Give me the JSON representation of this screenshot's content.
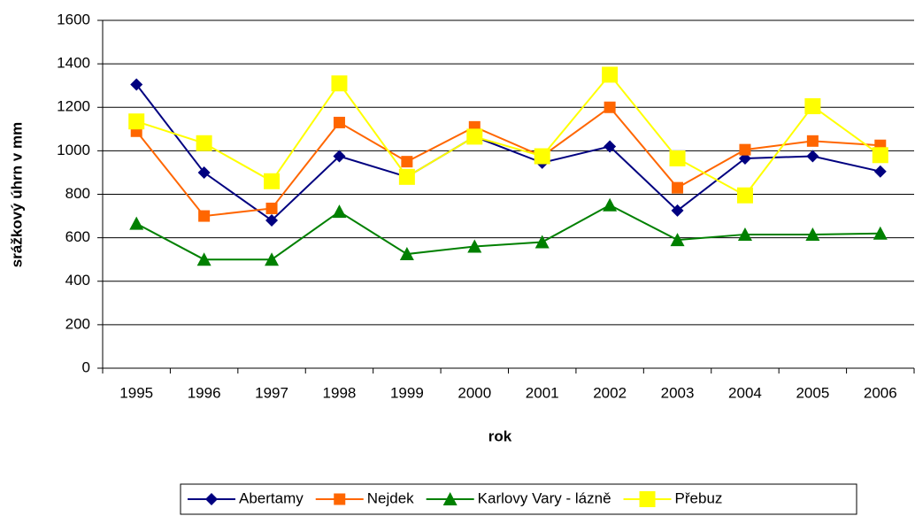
{
  "chart_data": {
    "type": "line",
    "x_label": "rok",
    "y_label": "srážkový úhrn v mm",
    "categories": [
      "1995",
      "1996",
      "1997",
      "1998",
      "1999",
      "2000",
      "2001",
      "2002",
      "2003",
      "2004",
      "2005",
      "2006"
    ],
    "series": [
      {
        "name": "Abertamy",
        "color": "#000080",
        "marker": "diamond",
        "values": [
          1305,
          900,
          680,
          975,
          880,
          1065,
          945,
          1020,
          725,
          965,
          975,
          905
        ]
      },
      {
        "name": "Nejdek",
        "color": "#FF6600",
        "marker": "square",
        "values": [
          1090,
          700,
          735,
          1130,
          950,
          1110,
          975,
          1200,
          830,
          1005,
          1045,
          1025
        ]
      },
      {
        "name": "Karlovy Vary - lázně",
        "color": "#008000",
        "marker": "triangle",
        "values": [
          665,
          500,
          500,
          720,
          525,
          560,
          580,
          750,
          590,
          615,
          615,
          620
        ]
      },
      {
        "name": "Přebuz",
        "color": "#FFFF00",
        "marker": "bigsquare",
        "values": [
          1135,
          1035,
          860,
          1310,
          880,
          1065,
          975,
          1350,
          965,
          795,
          1205,
          980
        ]
      }
    ],
    "ylim": [
      0,
      1600
    ],
    "yticks": [
      0,
      200,
      400,
      600,
      800,
      1000,
      1200,
      1400,
      1600
    ],
    "grid": true,
    "legend": "bottom"
  }
}
